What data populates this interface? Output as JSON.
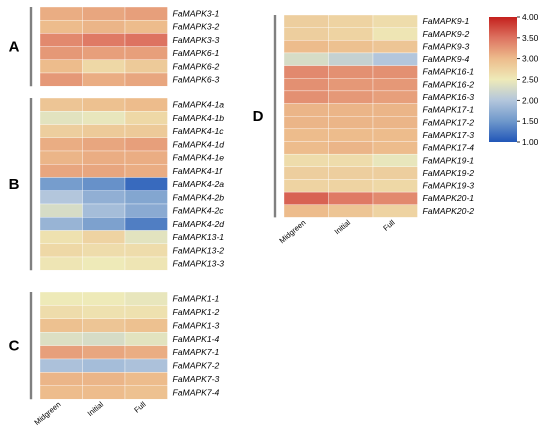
{
  "chart_data": [
    {
      "type": "heatmap",
      "panel": "A",
      "columns": [
        "Midgreen",
        "Initial",
        "Full"
      ],
      "rows": [
        "FaMAPK3-1",
        "FaMAPK3-2",
        "FaMAPK3-3",
        "FaMAPK6-1",
        "FaMAPK6-2",
        "FaMAPK6-3"
      ],
      "values": [
        [
          3.1,
          3.15,
          3.2
        ],
        [
          3.0,
          3.05,
          3.0
        ],
        [
          3.35,
          3.45,
          3.5
        ],
        [
          3.25,
          3.2,
          3.2
        ],
        [
          3.0,
          2.7,
          2.85
        ],
        [
          3.25,
          3.1,
          3.15
        ]
      ]
    },
    {
      "type": "heatmap",
      "panel": "B",
      "columns": [
        "Midgreen",
        "Initial",
        "Full"
      ],
      "rows": [
        "FaMAPK4-1a",
        "FaMAPK4-1b",
        "FaMAPK4-1c",
        "FaMAPK4-1d",
        "FaMAPK4-1e",
        "FaMAPK4-1f",
        "FaMAPK4-2a",
        "FaMAPK4-2b",
        "FaMAPK4-2c",
        "FaMAPK4-2d",
        "FaMAPK13-1",
        "FaMAPK13-2",
        "FaMAPK13-3"
      ],
      "values": [
        [
          2.9,
          2.95,
          3.0
        ],
        [
          2.4,
          2.45,
          2.7
        ],
        [
          2.8,
          2.85,
          2.85
        ],
        [
          3.1,
          3.15,
          3.2
        ],
        [
          3.05,
          3.1,
          3.1
        ],
        [
          3.15,
          3.15,
          3.1
        ],
        [
          1.55,
          1.45,
          1.15
        ],
        [
          2.0,
          1.75,
          1.65
        ],
        [
          2.3,
          1.9,
          1.7
        ],
        [
          1.8,
          1.6,
          1.3
        ],
        [
          2.6,
          2.75,
          2.4
        ],
        [
          2.7,
          2.65,
          2.65
        ],
        [
          2.55,
          2.5,
          2.55
        ]
      ]
    },
    {
      "type": "heatmap",
      "panel": "C",
      "columns": [
        "Midgreen",
        "Initial",
        "Full"
      ],
      "rows": [
        "FaMAPK1-1",
        "FaMAPK1-2",
        "FaMAPK1-3",
        "FaMAPK1-4",
        "FaMAPK7-1",
        "FaMAPK7-2",
        "FaMAPK7-3",
        "FaMAPK7-4"
      ],
      "values": [
        [
          2.5,
          2.5,
          2.45
        ],
        [
          2.65,
          2.6,
          2.6
        ],
        [
          2.95,
          2.9,
          2.95
        ],
        [
          2.35,
          2.3,
          2.4
        ],
        [
          3.2,
          3.15,
          3.1
        ],
        [
          1.95,
          1.9,
          1.95
        ],
        [
          3.05,
          3.05,
          3.0
        ],
        [
          3.0,
          3.0,
          2.95
        ]
      ]
    },
    {
      "type": "heatmap",
      "panel": "D",
      "columns": [
        "Midgreen",
        "Initial",
        "Full"
      ],
      "rows": [
        "FaMAPK9-1",
        "FaMAPK9-2",
        "FaMAPK9-3",
        "FaMAPK9-4",
        "FaMAPK16-1",
        "FaMAPK16-2",
        "FaMAPK16-3",
        "FaMAPK17-1",
        "FaMAPK17-2",
        "FaMAPK17-3",
        "FaMAPK17-4",
        "FaMAPK19-1",
        "FaMAPK19-2",
        "FaMAPK19-3",
        "FaMAPK20-1",
        "FaMAPK20-2"
      ],
      "values": [
        [
          2.8,
          2.75,
          2.65
        ],
        [
          2.8,
          2.75,
          2.55
        ],
        [
          3.0,
          2.95,
          2.9
        ],
        [
          2.3,
          2.15,
          2.0
        ],
        [
          3.35,
          3.3,
          3.3
        ],
        [
          3.3,
          3.25,
          3.25
        ],
        [
          3.3,
          3.25,
          3.2
        ],
        [
          3.05,
          3.05,
          3.05
        ],
        [
          3.05,
          3.05,
          3.05
        ],
        [
          3.0,
          3.0,
          3.0
        ],
        [
          3.0,
          3.05,
          3.0
        ],
        [
          2.65,
          2.65,
          2.45
        ],
        [
          2.8,
          2.8,
          2.8
        ],
        [
          2.75,
          2.75,
          2.7
        ],
        [
          3.6,
          3.45,
          3.35
        ],
        [
          3.0,
          2.9,
          2.75
        ]
      ]
    }
  ],
  "colorbar": {
    "range": [
      1.0,
      4.0
    ],
    "ticks": [
      "4.00",
      "3.50",
      "3.00",
      "2.50",
      "2.00",
      "1.50",
      "1.00"
    ],
    "stops": [
      "#2156b8",
      "#6f98cb",
      "#b3c6dc",
      "#eeeab8",
      "#edbc8c",
      "#dd7361",
      "#c4201d"
    ]
  },
  "panel_letters": [
    "A",
    "B",
    "C",
    "D"
  ]
}
